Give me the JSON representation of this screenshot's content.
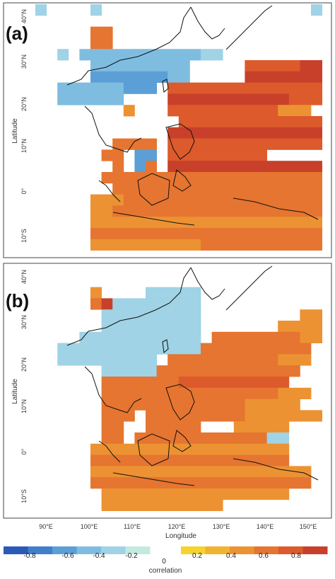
{
  "panels": [
    {
      "id": "a",
      "label": "(a)",
      "lat_ticks": [
        "40°N",
        "30°N",
        "20°N",
        "10°N",
        "0°",
        "10°S"
      ],
      "ylabel": "Latitude"
    },
    {
      "id": "b",
      "label": "(b)",
      "lat_ticks": [
        "40°N",
        "30°N",
        "20°N",
        "10°N",
        "0°",
        "10°S"
      ],
      "ylabel": "Latitude"
    }
  ],
  "lon_ticks": [
    "90°E",
    "100°E",
    "110°E",
    "120°E",
    "130°E",
    "140°E",
    "150°E"
  ],
  "xlabel": "Longitude",
  "colorbar": {
    "label": "correlation",
    "ticks": [
      "-0.8",
      "-0.6",
      "-0.4",
      "-0.2",
      "0",
      "0.2",
      "0.4",
      "0.6",
      "0.8"
    ],
    "negative_colors": [
      "#2b59b8",
      "#3f7fcb",
      "#5b9fd6",
      "#7fbde0",
      "#9fd3e5",
      "#c2eadf"
    ],
    "positive_colors": [
      "#f5d32a",
      "#f1b330",
      "#ec9232",
      "#e57530",
      "#dc5a2c",
      "#c8402a"
    ]
  },
  "coastline_color": "#111111"
}
